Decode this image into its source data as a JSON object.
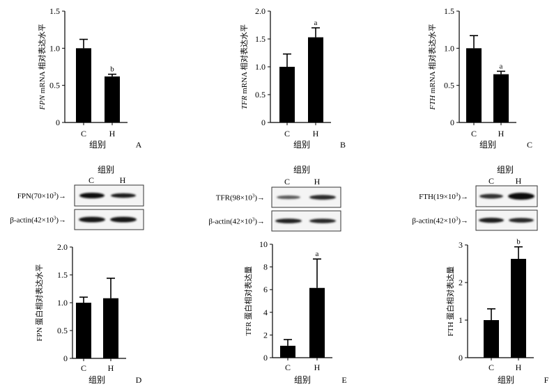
{
  "group_label": "组别",
  "charts": [
    {
      "type": "bar",
      "categories": [
        "C",
        "H"
      ],
      "values": [
        1.0,
        0.62
      ],
      "errors": [
        0.12,
        0.03
      ],
      "annotations": [
        "",
        "b"
      ],
      "ylabel_italic": "FPN",
      "ylabel_rest": " mRNA 相对表达水平",
      "xlabel": "组别",
      "yticks": [
        0,
        0.5,
        1.0,
        1.5
      ],
      "ytick_labels": [
        "0",
        "0.5",
        "1.0",
        "1.5"
      ],
      "ylim": [
        0,
        1.5
      ],
      "panel": "A"
    },
    {
      "type": "bar",
      "categories": [
        "C",
        "H"
      ],
      "values": [
        1.0,
        1.53
      ],
      "errors": [
        0.23,
        0.17
      ],
      "annotations": [
        "",
        "a"
      ],
      "ylabel_italic": "TFR",
      "ylabel_rest": " mRNA 相对表达水平",
      "xlabel": "组别",
      "yticks": [
        0,
        0.5,
        1.0,
        1.5,
        2.0
      ],
      "ytick_labels": [
        "0",
        "0.5",
        "1.0",
        "1.5",
        "2.0"
      ],
      "ylim": [
        0,
        2.0
      ],
      "panel": "B"
    },
    {
      "type": "bar",
      "categories": [
        "C",
        "H"
      ],
      "values": [
        1.0,
        0.65
      ],
      "errors": [
        0.17,
        0.04
      ],
      "annotations": [
        "",
        "a"
      ],
      "ylabel_italic": "FTH",
      "ylabel_rest": " mRNA 相对表达水平",
      "xlabel": "组别",
      "yticks": [
        0,
        0.5,
        1.0,
        1.5
      ],
      "ytick_labels": [
        "0",
        "0.5",
        "1.0",
        "1.5"
      ],
      "ylim": [
        0,
        1.5
      ],
      "panel": "C"
    },
    {
      "type": "bar",
      "categories": [
        "C",
        "H"
      ],
      "values": [
        1.0,
        1.08
      ],
      "errors": [
        0.1,
        0.36
      ],
      "annotations": [
        "",
        ""
      ],
      "ylabel_italic": "",
      "ylabel_rest": "FPN 蛋白相对表达水平",
      "xlabel": "组别",
      "yticks": [
        0,
        0.5,
        1.0,
        1.5,
        2.0
      ],
      "ytick_labels": [
        "0",
        "0.5",
        "1.0",
        "1.5",
        "2.0"
      ],
      "ylim": [
        0,
        2.0
      ],
      "panel": "D"
    },
    {
      "type": "bar",
      "categories": [
        "C",
        "H"
      ],
      "values": [
        1.05,
        6.15
      ],
      "errors": [
        0.55,
        2.55
      ],
      "annotations": [
        "",
        "a"
      ],
      "ylabel_italic": "",
      "ylabel_rest": "TFR 蛋白相对表达量",
      "xlabel": "组别",
      "yticks": [
        0,
        2,
        4,
        6,
        8,
        10
      ],
      "ytick_labels": [
        "0",
        "2",
        "4",
        "6",
        "8",
        "10"
      ],
      "ylim": [
        0,
        10
      ],
      "panel": "E"
    },
    {
      "type": "bar",
      "categories": [
        "C",
        "H"
      ],
      "values": [
        1.0,
        2.63
      ],
      "errors": [
        0.3,
        0.32
      ],
      "annotations": [
        "",
        "b"
      ],
      "ylabel_italic": "",
      "ylabel_rest": "FTH 蛋白相对表达量",
      "xlabel": "组别",
      "yticks": [
        0,
        1,
        2,
        3
      ],
      "ytick_labels": [
        "0",
        "1",
        "2",
        "3"
      ],
      "ylim": [
        0,
        3
      ],
      "panel": "F"
    }
  ],
  "blots": [
    {
      "header": "组别",
      "lanes": [
        "C",
        "H"
      ],
      "target_prefix": "FPN(70×10",
      "exp": "3",
      "control_prefix": "β-actin(42×10",
      "arrow": ")→"
    },
    {
      "header": "组别",
      "lanes": [
        "C",
        "H"
      ],
      "target_prefix": "TFR(98×10",
      "exp": "3",
      "control_prefix": "β-actin(42×10",
      "arrow": ")→"
    },
    {
      "header": "组别",
      "lanes": [
        "C",
        "H"
      ],
      "target_prefix": "FTH(19×10",
      "exp": "3",
      "control_prefix": "β-actin(42×10",
      "arrow": ")→"
    }
  ]
}
